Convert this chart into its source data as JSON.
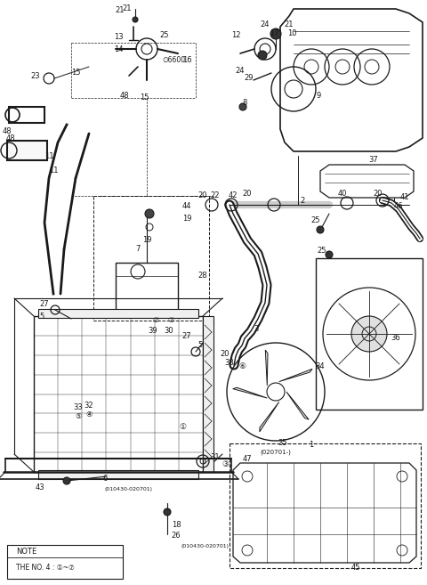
{
  "bg_color": "#ffffff",
  "line_color": "#1a1a1a",
  "text_color": "#1a1a1a",
  "fig_width": 4.8,
  "fig_height": 6.57,
  "dpi": 100,
  "note_line1": "NOTE",
  "note_line2": "THE NO. 4 : ①~⑦",
  "date1": "(010430-020701)",
  "date2": "(020701-)"
}
